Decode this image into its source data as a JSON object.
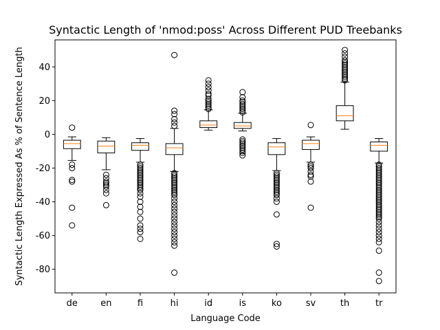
{
  "chart_data": {
    "type": "boxplot",
    "title": "Syntactic Length of 'nmod:poss' Across Different PUD Treebanks",
    "xlabel": "Language Code",
    "ylabel": "Syntactic Length Expressed As % of Sentence Length",
    "categories": [
      "de",
      "en",
      "fi",
      "hi",
      "id",
      "is",
      "ko",
      "sv",
      "th",
      "tr"
    ],
    "ylim": [
      -94,
      56
    ],
    "yticks": [
      -80,
      -60,
      -40,
      -20,
      0,
      20,
      40
    ],
    "grid": false,
    "colors": {
      "box": "#000000",
      "median": "#ff7f0e",
      "flier": "#000000"
    },
    "boxes": [
      {
        "label": "de",
        "whisker_low": -15.5,
        "q1": -8.5,
        "median": -5.5,
        "q3": -3.5,
        "whisker_high": -1.5,
        "fliers": [
          4,
          -18,
          -20,
          -27,
          -28,
          -43.5,
          -54
        ]
      },
      {
        "label": "en",
        "whisker_low": -21,
        "q1": -11,
        "median": -7,
        "q3": -4,
        "whisker_high": -2,
        "fliers": [
          -24,
          -26,
          -28,
          -29,
          -30,
          -31,
          -33,
          -35,
          -42
        ]
      },
      {
        "label": "fi",
        "whisker_low": -16.5,
        "q1": -9.5,
        "median": -6.5,
        "q3": -5,
        "whisker_high": -2.5,
        "fliers": [
          -18,
          -19,
          -20,
          -21,
          -22,
          -23,
          -24,
          -25,
          -26,
          -27,
          -28,
          -29,
          -30,
          -31,
          -32,
          -33,
          -35,
          -37,
          -40,
          -43,
          -46,
          -50,
          -54,
          -56,
          -58,
          -62
        ]
      },
      {
        "label": "hi",
        "whisker_low": -22,
        "q1": -12,
        "median": -8,
        "q3": -5.5,
        "whisker_high": 3.5,
        "fliers": [
          47,
          14,
          12,
          9,
          7,
          5,
          -23,
          -24,
          -25,
          -26,
          -27,
          -28,
          -29,
          -30,
          -31,
          -32,
          -33,
          -34,
          -35,
          -36,
          -38,
          -40,
          -42,
          -44,
          -46,
          -48,
          -50,
          -52,
          -54,
          -56,
          -58,
          -60,
          -62,
          -64,
          -66,
          -82
        ]
      },
      {
        "label": "id",
        "whisker_low": 2.5,
        "q1": 4,
        "median": 5.5,
        "q3": 8,
        "whisker_high": 14.5,
        "fliers": [
          15,
          16,
          17,
          18,
          19,
          20,
          21,
          23,
          24,
          26,
          28,
          30,
          32
        ]
      },
      {
        "label": "is",
        "whisker_low": 2,
        "q1": 3.5,
        "median": 5,
        "q3": 7,
        "whisker_high": 12.5,
        "fliers": [
          13,
          14,
          15,
          16,
          17,
          18,
          19,
          20,
          22,
          25,
          -3,
          -4,
          -5,
          -6,
          -7,
          -8,
          -9,
          -10,
          -11,
          -12.5
        ]
      },
      {
        "label": "ko",
        "whisker_low": -21.5,
        "q1": -12,
        "median": -7.5,
        "q3": -5,
        "whisker_high": -2.5,
        "fliers": [
          -23,
          -24,
          -25,
          -26,
          -27,
          -28,
          -29,
          -30,
          -31,
          -32,
          -33,
          -34,
          -35,
          -36,
          -38,
          -40,
          -47.5,
          -65,
          -66.5
        ]
      },
      {
        "label": "sv",
        "whisker_low": -16.5,
        "q1": -9,
        "median": -5.5,
        "q3": -3.5,
        "whisker_high": -1.5,
        "fliers": [
          5.5,
          -18,
          -19,
          -20,
          -22,
          -24,
          -25,
          -28,
          -43.5
        ]
      },
      {
        "label": "th",
        "whisker_low": 3,
        "q1": 8,
        "median": 11,
        "q3": 17,
        "whisker_high": 31,
        "fliers": [
          32,
          33,
          34,
          35,
          36,
          37,
          38,
          39,
          40,
          41,
          42,
          43,
          44,
          46,
          48,
          50
        ]
      },
      {
        "label": "tr",
        "whisker_low": -17,
        "q1": -10,
        "median": -6.5,
        "q3": -4.5,
        "whisker_high": -2.5,
        "fliers": [
          -18,
          -19,
          -20,
          -21,
          -22,
          -23,
          -24,
          -25,
          -26,
          -27,
          -28,
          -29,
          -30,
          -31,
          -32,
          -33,
          -34,
          -35,
          -36,
          -37,
          -38,
          -39,
          -40,
          -41,
          -42,
          -43,
          -44,
          -45,
          -46,
          -47,
          -48,
          -49,
          -50,
          -52,
          -54,
          -56,
          -58,
          -60,
          -62,
          -64,
          -69,
          -82,
          -87
        ]
      }
    ]
  }
}
